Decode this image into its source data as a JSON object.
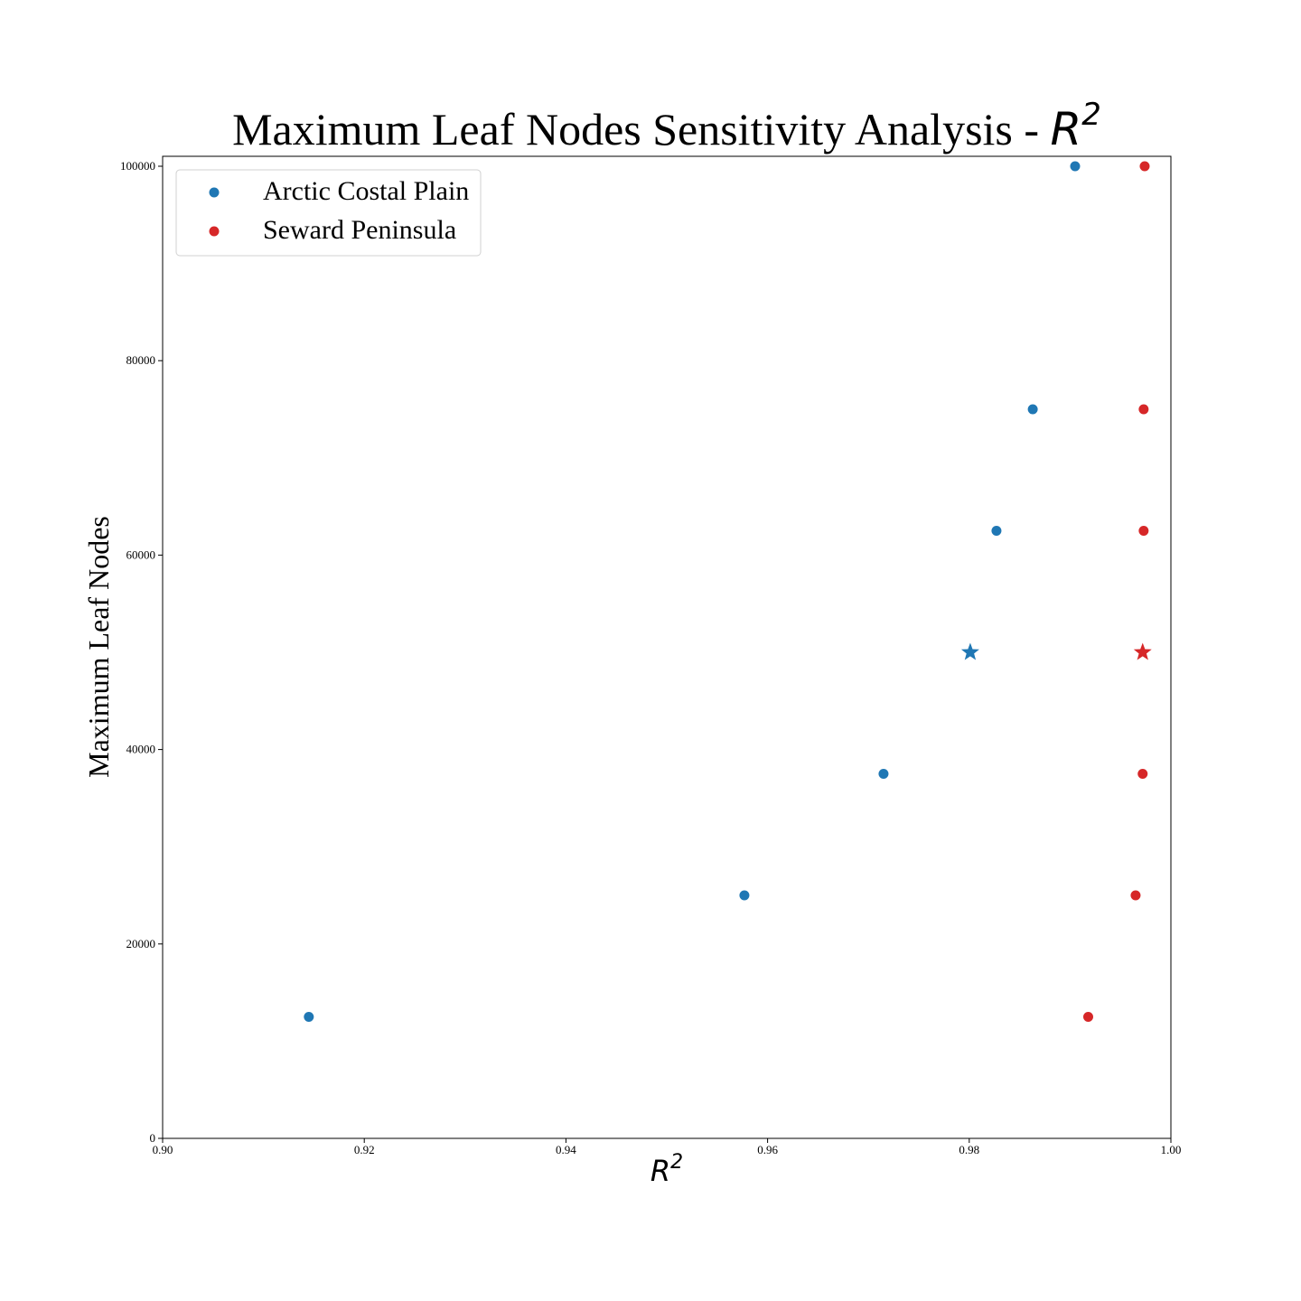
{
  "chart_data": {
    "type": "scatter",
    "title": "Maximum Leaf Nodes Sensitivity Analysis - ",
    "title_math": "R",
    "title_sup": "2",
    "xlabel": "R",
    "xlabel_sup": "2",
    "ylabel": "Maximum Leaf Nodes",
    "xlim": [
      0.9,
      1.0
    ],
    "ylim": [
      0,
      100000
    ],
    "xticks": [
      0.9,
      0.92,
      0.94,
      0.96,
      0.98,
      1.0
    ],
    "xtick_labels": [
      "0.90",
      "0.92",
      "0.94",
      "0.96",
      "0.98",
      "1.00"
    ],
    "yticks": [
      0,
      20000,
      40000,
      60000,
      80000,
      100000
    ],
    "ytick_labels": [
      "0",
      "20000",
      "40000",
      "60000",
      "80000",
      "100000"
    ],
    "grid": false,
    "legend_position": "top-left",
    "series": [
      {
        "name": "Arctic Costal Plain",
        "color": "#1f77b4",
        "points": [
          {
            "x": 0.9145,
            "y": 12500,
            "marker": "circle"
          },
          {
            "x": 0.9577,
            "y": 25000,
            "marker": "circle"
          },
          {
            "x": 0.9715,
            "y": 37500,
            "marker": "circle"
          },
          {
            "x": 0.9801,
            "y": 50000,
            "marker": "star"
          },
          {
            "x": 0.9827,
            "y": 62500,
            "marker": "circle"
          },
          {
            "x": 0.9863,
            "y": 75000,
            "marker": "circle"
          },
          {
            "x": 0.9905,
            "y": 100000,
            "marker": "circle"
          }
        ]
      },
      {
        "name": "Seward Peninsula",
        "color": "#d62728",
        "points": [
          {
            "x": 0.9918,
            "y": 12500,
            "marker": "circle"
          },
          {
            "x": 0.9965,
            "y": 25000,
            "marker": "circle"
          },
          {
            "x": 0.9972,
            "y": 37500,
            "marker": "circle"
          },
          {
            "x": 0.9972,
            "y": 50000,
            "marker": "star"
          },
          {
            "x": 0.9973,
            "y": 62500,
            "marker": "circle"
          },
          {
            "x": 0.9973,
            "y": 75000,
            "marker": "circle"
          },
          {
            "x": 0.9974,
            "y": 100000,
            "marker": "circle"
          }
        ]
      }
    ]
  }
}
